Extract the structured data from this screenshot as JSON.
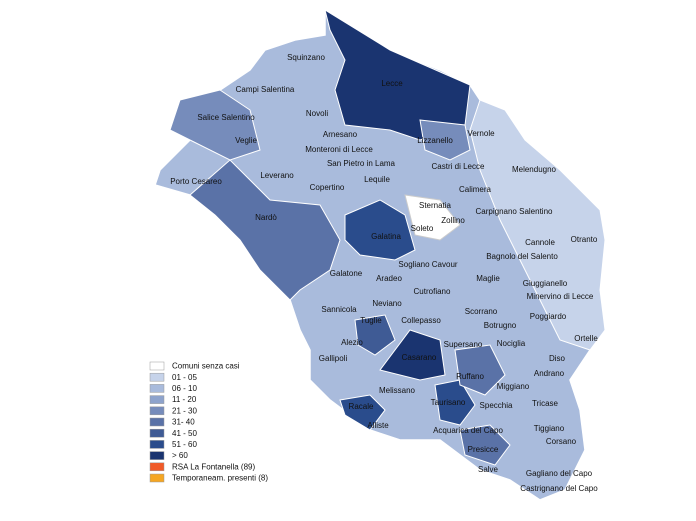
{
  "legend": {
    "items": [
      {
        "label": "Comuni senza casi",
        "color": "#ffffff"
      },
      {
        "label": "01 - 05",
        "color": "#c6d3ea"
      },
      {
        "label": "06 - 10",
        "color": "#a9bbdc"
      },
      {
        "label": "11 - 20",
        "color": "#8ea3cc"
      },
      {
        "label": "21 - 30",
        "color": "#768cbb"
      },
      {
        "label": "31- 40",
        "color": "#5a72a7"
      },
      {
        "label": "41 - 50",
        "color": "#3f5b95"
      },
      {
        "label": "51 - 60",
        "color": "#2a4c8c"
      },
      {
        "label": "> 60",
        "color": "#1a3470"
      },
      {
        "label": "RSA La Fontanella (89)",
        "color": "#f05a28"
      },
      {
        "label": "Temporaneam. presenti (8)",
        "color": "#f5a623"
      }
    ]
  },
  "towns": [
    "Squinzano",
    "Lecce",
    "Campi Salentina",
    "Novoli",
    "Salice Salentino",
    "Arnesano",
    "Vernole",
    "Lizzanello",
    "Veglie",
    "Monteroni di Lecce",
    "Castri di Lecce",
    "Melendugno",
    "San Pietro in Lama",
    "Porto Cesareo",
    "Leverano",
    "Lequile",
    "Calimera",
    "Copertino",
    "Sternatia",
    "Carpignano Salentino",
    "Zollino",
    "Nardò",
    "Soleto",
    "Galatina",
    "Cannole",
    "Otranto",
    "Aradeo",
    "Sogliano Cavour",
    "Bagnolo del Salento",
    "Galatone",
    "Maglie",
    "Cutrofiano",
    "Giuggianello",
    "Minervino di Lecce",
    "Neviano",
    "Sannicola",
    "Scorrano",
    "Tuglie",
    "Collepasso",
    "Botrugno",
    "Poggiardo",
    "Ortelle",
    "Alezio",
    "Supersano",
    "Nociglia",
    "Gallipoli",
    "Diso",
    "Casarano",
    "Andrano",
    "Ruffano",
    "Melissano",
    "Miggiano",
    "Racale",
    "Taurisano",
    "Specchia",
    "Tricase",
    "Alliste",
    "Acquarica del Capo",
    "Tiggiano",
    "Presicce",
    "Corsano",
    "Salve",
    "Gagliano del Capo",
    "Castrignano del Capo"
  ]
}
